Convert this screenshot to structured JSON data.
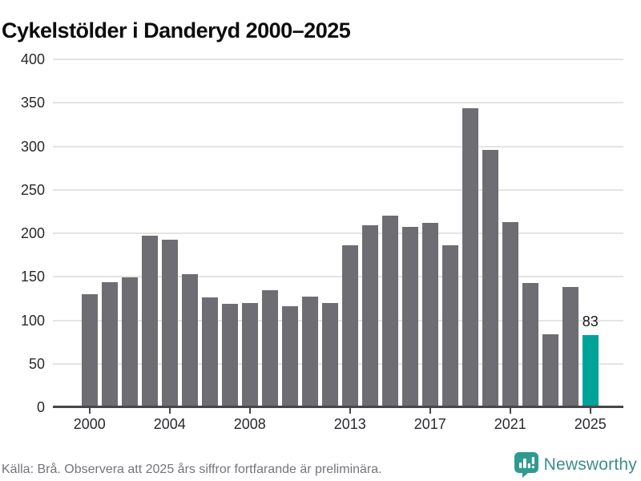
{
  "title": "Cykelstölder i Danderyd 2000–2025",
  "chart_data": {
    "type": "bar",
    "title": "Cykelstölder i Danderyd 2000–2025",
    "categories": [
      2000,
      2001,
      2002,
      2003,
      2004,
      2005,
      2006,
      2007,
      2008,
      2009,
      2010,
      2011,
      2012,
      2013,
      2014,
      2015,
      2016,
      2017,
      2018,
      2019,
      2020,
      2021,
      2022,
      2023,
      2024,
      2025
    ],
    "values": [
      130,
      144,
      149,
      197,
      193,
      153,
      126,
      119,
      120,
      135,
      116,
      127,
      120,
      186,
      209,
      220,
      207,
      212,
      186,
      344,
      296,
      213,
      143,
      84,
      138,
      83
    ],
    "highlight_index": 25,
    "highlight_label": "83",
    "bar_color": "#6e6d73",
    "highlight_color": "#00a39a",
    "xlabel": "",
    "ylabel": "",
    "ylim": [
      0,
      400
    ],
    "yticks": [
      0,
      50,
      100,
      150,
      200,
      250,
      300,
      350,
      400
    ],
    "xticks": [
      {
        "index": 0,
        "label": "2000"
      },
      {
        "index": 4,
        "label": "2004"
      },
      {
        "index": 8,
        "label": "2008"
      },
      {
        "index": 13,
        "label": "2013"
      },
      {
        "index": 17,
        "label": "2017"
      },
      {
        "index": 21,
        "label": "2021"
      },
      {
        "index": 25,
        "label": "2025"
      }
    ],
    "grid": "horizontal",
    "legend": "none"
  },
  "footer": {
    "source_text": "Källa: Brå. Observera att 2025 års siffror fortfarande är preliminära.",
    "brand": {
      "name": "Newsworthy",
      "icon": "bar-chart-speech-bubble-icon",
      "icon_color": "#2f9a90",
      "text_color": "#3d8e89"
    }
  }
}
